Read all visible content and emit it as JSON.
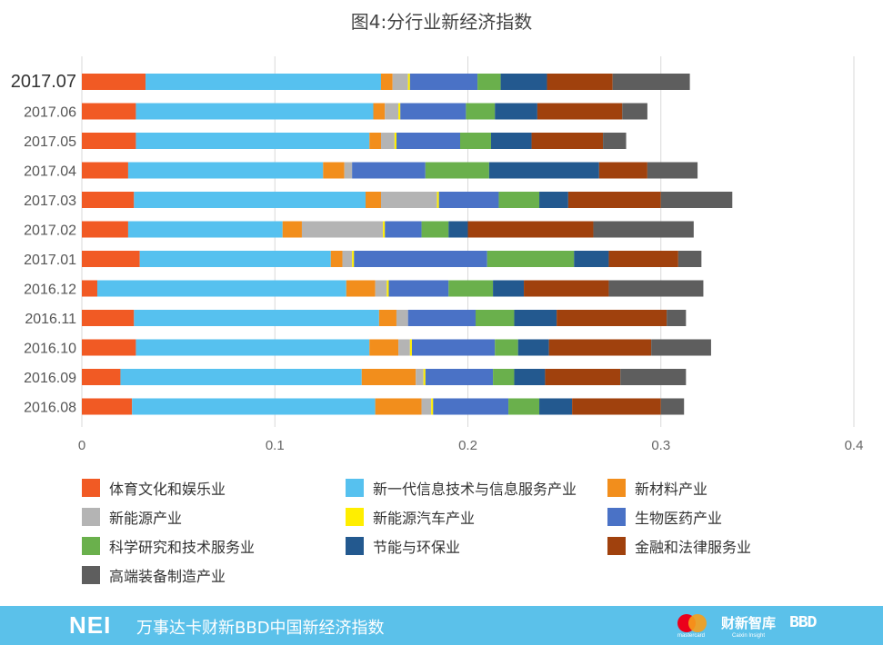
{
  "title": "图4:分行业新经济指数",
  "chart_data": {
    "type": "bar",
    "orientation": "horizontal",
    "stacked": true,
    "categories": [
      "2017.07",
      "2017.06",
      "2017.05",
      "2017.04",
      "2017.03",
      "2017.02",
      "2017.01",
      "2016.12",
      "2016.11",
      "2016.10",
      "2016.09",
      "2016.08"
    ],
    "highlighted_category": "2017.07",
    "xlim": [
      0,
      0.4
    ],
    "xticks": [
      "0",
      "0.1",
      "0.2",
      "0.3",
      "0.4"
    ],
    "grid": true,
    "legend_position": "bottom",
    "series": [
      {
        "name": "体育文化和娱乐业",
        "color": "#f15a24",
        "values": [
          0.033,
          0.028,
          0.028,
          0.024,
          0.027,
          0.024,
          0.03,
          0.008,
          0.027,
          0.028,
          0.02,
          0.026
        ]
      },
      {
        "name": "新一代信息技术与信息服务产业",
        "color": "#56c1ef",
        "values": [
          0.122,
          0.123,
          0.121,
          0.101,
          0.12,
          0.08,
          0.099,
          0.129,
          0.127,
          0.121,
          0.125,
          0.126
        ]
      },
      {
        "name": "新材料产业",
        "color": "#f28e1c",
        "values": [
          0.006,
          0.006,
          0.006,
          0.011,
          0.008,
          0.01,
          0.006,
          0.015,
          0.009,
          0.015,
          0.028,
          0.024
        ]
      },
      {
        "name": "新能源产业",
        "color": "#b4b4b4",
        "values": [
          0.008,
          0.007,
          0.007,
          0.004,
          0.029,
          0.042,
          0.005,
          0.006,
          0.006,
          0.006,
          0.004,
          0.005
        ]
      },
      {
        "name": "新能源汽车产业",
        "color": "#ffee00",
        "values": [
          0.001,
          0.001,
          0.001,
          0.0,
          0.001,
          0.001,
          0.001,
          0.001,
          0.0,
          0.001,
          0.001,
          0.001
        ]
      },
      {
        "name": "生物医药产业",
        "color": "#4a72c6",
        "values": [
          0.035,
          0.034,
          0.033,
          0.038,
          0.031,
          0.019,
          0.069,
          0.031,
          0.035,
          0.043,
          0.035,
          0.039
        ]
      },
      {
        "name": "科学研究和技术服务业",
        "color": "#6ab04c",
        "values": [
          0.012,
          0.015,
          0.016,
          0.033,
          0.021,
          0.014,
          0.045,
          0.023,
          0.02,
          0.012,
          0.011,
          0.016
        ]
      },
      {
        "name": "节能与环保业",
        "color": "#23598f",
        "values": [
          0.024,
          0.022,
          0.021,
          0.057,
          0.015,
          0.01,
          0.018,
          0.016,
          0.022,
          0.016,
          0.016,
          0.017
        ]
      },
      {
        "name": "金融和法律服务业",
        "color": "#a0410d",
        "values": [
          0.034,
          0.044,
          0.037,
          0.025,
          0.048,
          0.065,
          0.036,
          0.044,
          0.057,
          0.053,
          0.039,
          0.046
        ]
      },
      {
        "name": "高端装备制造产业",
        "color": "#5e5e5e",
        "values": [
          0.04,
          0.013,
          0.012,
          0.026,
          0.037,
          0.052,
          0.012,
          0.049,
          0.01,
          0.031,
          0.034,
          0.012
        ]
      }
    ]
  },
  "footer": {
    "logo": "NEI",
    "text": "万事达卡财新BBD中国新经济指数",
    "brand_mastercard_caption": "mastercard",
    "brand_caixin": "财新智库",
    "brand_caixin_caption": "Caixin Insight",
    "brand_bbd": "BBD",
    "background": "#5bc1ea"
  }
}
